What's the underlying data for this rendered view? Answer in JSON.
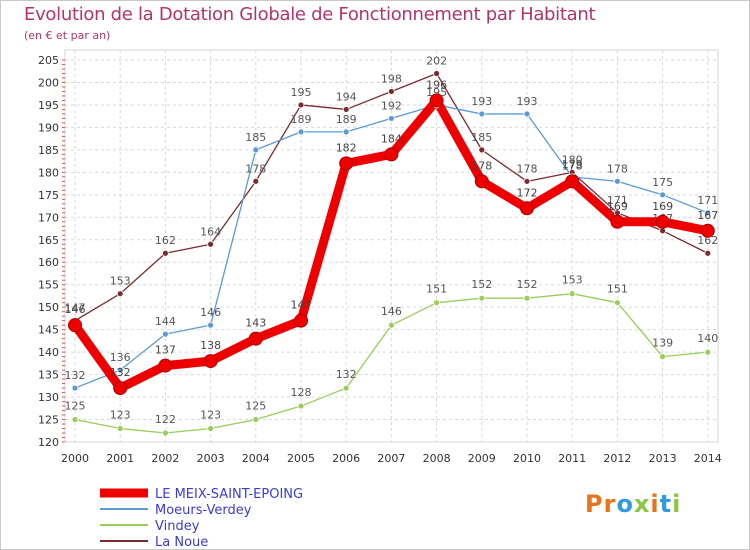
{
  "chart_data": {
    "type": "line",
    "title": "Evolution de la Dotation Globale de Fonctionnement par Habitant",
    "subtitle": "(en € et par an)",
    "x": [
      2000,
      2001,
      2002,
      2003,
      2004,
      2005,
      2006,
      2007,
      2008,
      2009,
      2010,
      2011,
      2012,
      2013,
      2014
    ],
    "ylim": [
      120,
      205
    ],
    "yticks": [
      120,
      125,
      130,
      135,
      140,
      145,
      150,
      155,
      160,
      165,
      170,
      175,
      180,
      185,
      190,
      195,
      200,
      205
    ],
    "grid": true,
    "legend_position": "bottom-left",
    "series": [
      {
        "name": "La Noue",
        "color": "#7b2a2f",
        "values": [
          147,
          153,
          162,
          164,
          178,
          195,
          194,
          198,
          202,
          185,
          178,
          180,
          171,
          167,
          162
        ]
      },
      {
        "name": "Moeurs-Verdey",
        "color": "#5b9bd5",
        "values": [
          132,
          136,
          144,
          146,
          185,
          189,
          189,
          192,
          195,
          193,
          193,
          179,
          178,
          175,
          171
        ]
      },
      {
        "name": "Vindey",
        "color": "#9acd5a",
        "values": [
          125,
          123,
          122,
          123,
          125,
          128,
          132,
          146,
          151,
          152,
          152,
          153,
          151,
          139,
          140
        ]
      },
      {
        "name": "LE MEIX-SAINT-EPOING",
        "color": "#ee0000",
        "values": [
          146,
          132,
          137,
          138,
          143,
          147,
          182,
          184,
          196,
          178,
          172,
          178,
          169,
          169,
          167
        ]
      }
    ],
    "legend": [
      "LE MEIX-SAINT-EPOING",
      "Moeurs-Verdey",
      "Vindey",
      "La Noue"
    ]
  },
  "brand": {
    "logo_text": "Proxiti",
    "letters": [
      {
        "ch": "P",
        "color": "#e8731a"
      },
      {
        "ch": "r",
        "color": "#e8731a"
      },
      {
        "ch": "o",
        "color": "#2f9be0"
      },
      {
        "ch": "x",
        "color": "#8cc63e"
      },
      {
        "ch": "i",
        "color": "#e8731a"
      },
      {
        "ch": "t",
        "color": "#2f9be0"
      },
      {
        "ch": "i",
        "color": "#8cc63e"
      }
    ]
  }
}
